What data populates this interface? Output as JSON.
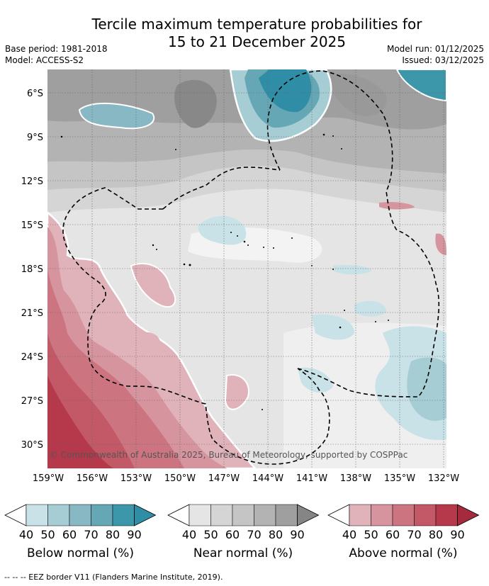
{
  "title": {
    "line1": "Tercile maximum temperature probabilities for",
    "line2": "15 to 21 December 2025"
  },
  "meta": {
    "base_period": "Base period: 1981-2018",
    "model": "Model: ACCESS-S2",
    "model_run": "Model run: 01/12/2025",
    "issued": "Issued: 03/12/2025"
  },
  "map": {
    "lat_labels": [
      "6°S",
      "9°S",
      "12°S",
      "15°S",
      "18°S",
      "21°S",
      "24°S",
      "27°S",
      "30°S"
    ],
    "lon_labels": [
      "159°W",
      "156°W",
      "153°W",
      "150°W",
      "147°W",
      "144°W",
      "141°W",
      "138°W",
      "135°W",
      "132°W"
    ],
    "copyright": "© Commonwealth of Australia 2025, Bureau of Meteorology, supported by COSPPac"
  },
  "legends": [
    {
      "caption": "Below normal (%)",
      "ticks": [
        "40",
        "50",
        "60",
        "70",
        "80",
        "90"
      ],
      "colors": [
        "#c9e2e7",
        "#a6cdd4",
        "#88b8c3",
        "#66a7b5",
        "#3d97ab"
      ],
      "arrow": "#2f8ea5"
    },
    {
      "caption": "Near normal (%)",
      "ticks": [
        "40",
        "50",
        "60",
        "70",
        "80",
        "90"
      ],
      "colors": [
        "#e5e5e5",
        "#d5d5d5",
        "#c5c5c5",
        "#b3b3b3",
        "#9f9f9f"
      ],
      "arrow": "#858585"
    },
    {
      "caption": "Above normal (%)",
      "ticks": [
        "40",
        "50",
        "60",
        "70",
        "80",
        "90"
      ],
      "colors": [
        "#e0b3bb",
        "#d5949e",
        "#cc7581",
        "#c35867",
        "#b5394a"
      ],
      "arrow": "#a52a3e"
    }
  ],
  "footer": {
    "eez": "--  --  -- EEZ border V11 (Flanders Marine Institute, 2019)."
  }
}
